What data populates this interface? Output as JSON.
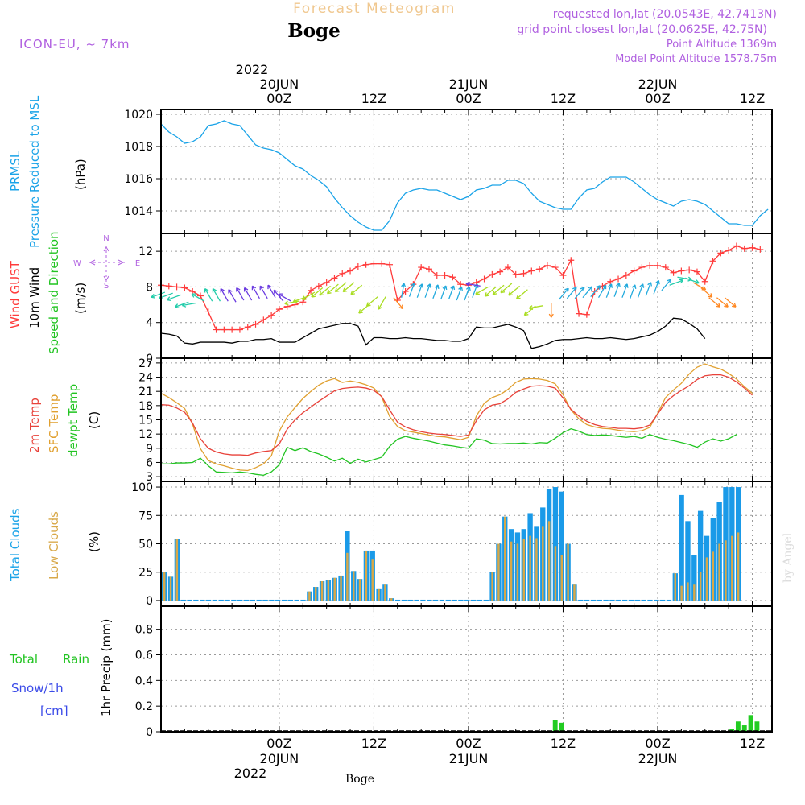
{
  "header": {
    "title": "Forecast Meteogram",
    "location": "Boge",
    "model": "ICON-EU, ~ 7km",
    "requested": "requested lon,lat (20.0543E, 42.7413N)",
    "gridpoint": "grid point closest lon,lat (20.0625E, 42.75N)",
    "altitude": "Point Altitude 1369m",
    "model_altitude": "Model Point Altitude 1578.75m",
    "footer_location": "Boge",
    "watermark": "by Angel"
  },
  "time_axis": {
    "top_year": "2022",
    "bottom_year": "2022",
    "major_labels": [
      "00Z",
      "12Z",
      "00Z",
      "12Z",
      "00Z",
      "12Z"
    ],
    "date_labels": [
      "20JUN",
      "21JUN",
      "22JUN"
    ]
  },
  "colors": {
    "pressure": "#1aa3e8",
    "gust": "#ff3b3b",
    "wind": "#000000",
    "temp": "#e8423a",
    "sfc_temp": "#e0a030",
    "dewpt": "#22c422",
    "total_clouds": "#1a9ae8",
    "low_clouds": "#d8a848",
    "rain": "#22cc22",
    "snow": "#3a4ae8",
    "purple": "#b060e0",
    "title_faint": "#f0c890"
  },
  "panels": {
    "pressure": {
      "label1": "PRMSL",
      "label2": "Pressure Reduced to MSL",
      "unit": "(hPa)",
      "ticks": [
        "1014",
        "1016",
        "1018",
        "1020"
      ]
    },
    "wind": {
      "label_gust": "Wind GUST",
      "label_wind": "10m Wind",
      "label_dir": "Speed and Direction",
      "unit": "(m/s)",
      "ticks": [
        "0",
        "4",
        "8",
        "12"
      ],
      "compass": {
        "n": "N",
        "s": "S",
        "w": "W",
        "e": "E"
      }
    },
    "temp": {
      "label1": "2m Temp",
      "label2": "SFC Temp",
      "label3": "dewpt Temp",
      "unit": "(C)",
      "ticks": [
        "3",
        "6",
        "9",
        "12",
        "15",
        "18",
        "21",
        "24",
        "27"
      ]
    },
    "clouds": {
      "label1": "Total Clouds",
      "label2": "Low Clouds",
      "unit": "(%)",
      "ticks": [
        "0",
        "25",
        "50",
        "75",
        "100"
      ]
    },
    "precip": {
      "label1": "Total",
      "label2": "Rain",
      "label3": "Snow/1h",
      "label4": "[cm]",
      "axis_label": "1hr Precip (mm)",
      "ticks": [
        "0",
        "0.2",
        "0.4",
        "0.6",
        "0.8"
      ]
    }
  },
  "chart_data": {
    "type": "line",
    "time_start_utc": "2022-06-19T09:00Z",
    "time_step_hours": 1,
    "time_index_dates": {
      "0": "2022-06-19 09Z",
      "15": "2022-06-20 00Z",
      "39": "2022-06-21 00Z",
      "63": "2022-06-22 00Z"
    },
    "series": [
      {
        "name": "PRMSL",
        "unit": "hPa",
        "values": [
          1019.4,
          1018.9,
          1018.6,
          1018.2,
          1018.3,
          1018.6,
          1019.3,
          1019.4,
          1019.6,
          1019.4,
          1019.3,
          1018.7,
          1018.1,
          1017.9,
          1017.8,
          1017.6,
          1017.2,
          1016.8,
          1016.6,
          1016.2,
          1015.9,
          1015.5,
          1014.8,
          1014.2,
          1013.7,
          1013.3,
          1013.0,
          1012.8,
          1012.8,
          1013.4,
          1014.5,
          1015.1,
          1015.3,
          1015.4,
          1015.3,
          1015.3,
          1015.1,
          1014.9,
          1014.7,
          1014.9,
          1015.3,
          1015.4,
          1015.6,
          1015.6,
          1015.9,
          1015.9,
          1015.7,
          1015.1,
          1014.6,
          1014.4,
          1014.2,
          1014.1,
          1014.1,
          1014.8,
          1015.3,
          1015.4,
          1015.8,
          1016.1,
          1016.1,
          1016.1,
          1015.8,
          1015.4,
          1015.0,
          1014.7,
          1014.5,
          1014.3,
          1014.6,
          1014.7,
          1014.6,
          1014.4,
          1014.0,
          1013.6,
          1013.2,
          1013.2,
          1013.1,
          1013.1,
          1013.7,
          1014.1
        ]
      },
      {
        "name": "Wind GUST",
        "unit": "m/s",
        "values": [
          8.2,
          8.1,
          8.0,
          7.9,
          7.5,
          7.0,
          5.2,
          3.2,
          3.2,
          3.2,
          3.2,
          3.5,
          3.8,
          4.3,
          4.8,
          5.5,
          5.8,
          6.0,
          6.3,
          7.6,
          8.1,
          8.5,
          9.0,
          9.5,
          9.8,
          10.3,
          10.5,
          10.6,
          10.6,
          10.5,
          6.5,
          7.5,
          8.3,
          10.2,
          10.0,
          9.3,
          9.3,
          9.1,
          8.3,
          8.2,
          8.5,
          8.9,
          9.4,
          9.7,
          10.2,
          9.4,
          9.5,
          9.8,
          10.0,
          10.4,
          10.2,
          9.3,
          11.0,
          5.0,
          4.9,
          7.5,
          8.1,
          8.6,
          8.9,
          9.3,
          9.8,
          10.2,
          10.4,
          10.4,
          10.2,
          9.6,
          9.8,
          9.9,
          9.7,
          8.6,
          10.9,
          11.8,
          12.1,
          12.6,
          12.3,
          12.4,
          12.2
        ]
      },
      {
        "name": "10m Wind",
        "unit": "m/s",
        "values": [
          2.8,
          2.7,
          2.5,
          1.7,
          1.6,
          1.8,
          1.8,
          1.8,
          1.8,
          1.7,
          1.9,
          1.9,
          2.1,
          2.1,
          2.2,
          1.8,
          1.8,
          1.8,
          2.3,
          2.8,
          3.3,
          3.5,
          3.7,
          3.9,
          3.9,
          3.6,
          1.5,
          2.3,
          2.3,
          2.2,
          2.2,
          2.3,
          2.2,
          2.2,
          2.1,
          2.0,
          2.0,
          1.9,
          1.9,
          2.2,
          3.5,
          3.4,
          3.4,
          3.6,
          3.8,
          3.5,
          3.1,
          1.1,
          1.3,
          1.6,
          2.0,
          2.1,
          2.1,
          2.2,
          2.3,
          2.2,
          2.2,
          2.3,
          2.2,
          2.1,
          2.2,
          2.4,
          2.6,
          3.0,
          3.6,
          4.5,
          4.4,
          3.9,
          3.3,
          2.2
        ]
      },
      {
        "name": "2m Temp",
        "unit": "C",
        "values": [
          18.2,
          18.1,
          17.5,
          16.6,
          14.3,
          11.0,
          9.0,
          8.2,
          7.8,
          7.6,
          7.6,
          7.5,
          8.0,
          8.3,
          8.5,
          9.9,
          13.0,
          15.0,
          16.5,
          17.7,
          18.9,
          20.0,
          21.1,
          21.6,
          21.8,
          21.9,
          21.7,
          21.2,
          19.9,
          17.1,
          14.5,
          13.5,
          12.9,
          12.5,
          12.2,
          12.0,
          11.9,
          11.7,
          11.5,
          11.8,
          14.8,
          17.1,
          18.1,
          18.4,
          19.4,
          20.8,
          21.5,
          22.1,
          22.2,
          22.1,
          21.7,
          19.6,
          17.2,
          15.8,
          14.7,
          14.0,
          13.6,
          13.4,
          13.2,
          13.2,
          13.1,
          13.3,
          13.9,
          16.2,
          18.7,
          20.1,
          21.2,
          22.2,
          23.5,
          24.3,
          24.5,
          24.5,
          24.0,
          23.0,
          21.7,
          20.2
        ]
      },
      {
        "name": "SFC Temp",
        "unit": "C",
        "values": [
          20.6,
          19.7,
          18.6,
          17.4,
          14.1,
          8.9,
          6.4,
          5.7,
          5.3,
          4.8,
          4.4,
          4.3,
          4.9,
          5.7,
          7.4,
          12.6,
          15.6,
          17.6,
          19.5,
          21.0,
          22.3,
          23.2,
          23.7,
          22.9,
          23.2,
          22.9,
          22.4,
          21.7,
          19.8,
          15.7,
          13.6,
          12.7,
          12.4,
          12.1,
          11.8,
          11.5,
          11.4,
          11.1,
          10.8,
          11.3,
          15.8,
          18.5,
          19.7,
          20.3,
          21.4,
          22.9,
          23.6,
          23.7,
          23.6,
          23.3,
          22.6,
          20.3,
          17.1,
          15.2,
          14.0,
          13.5,
          13.2,
          13.1,
          12.8,
          12.6,
          12.5,
          12.7,
          13.4,
          16.4,
          19.7,
          21.3,
          22.7,
          24.7,
          26.1,
          26.8,
          26.2,
          25.7,
          24.8,
          23.6,
          22.0,
          20.6
        ]
      },
      {
        "name": "dewpt Temp",
        "unit": "C",
        "values": [
          5.7,
          5.7,
          5.9,
          5.9,
          6.0,
          6.9,
          5.3,
          4.0,
          3.9,
          3.8,
          4.0,
          3.8,
          3.5,
          3.3,
          4.0,
          5.5,
          9.2,
          8.5,
          9.1,
          8.3,
          7.8,
          7.1,
          6.3,
          6.9,
          5.8,
          6.7,
          6.1,
          6.6,
          7.1,
          9.4,
          10.9,
          11.5,
          11.1,
          10.8,
          10.5,
          10.1,
          9.7,
          9.5,
          9.2,
          9.0,
          11.0,
          10.7,
          10.0,
          9.9,
          10.0,
          10.0,
          10.1,
          9.9,
          10.2,
          10.1,
          11.1,
          12.3,
          13.1,
          12.6,
          11.9,
          11.7,
          11.8,
          11.7,
          11.5,
          11.3,
          11.5,
          11.1,
          11.9,
          11.3,
          10.9,
          10.6,
          10.2,
          9.8,
          9.2,
          10.3,
          11.0,
          10.5,
          11.0,
          11.9
        ]
      },
      {
        "name": "Total Clouds",
        "unit": "%",
        "values": [
          25,
          21,
          54,
          0,
          0,
          0,
          0,
          0,
          0,
          0,
          0,
          0,
          0,
          0,
          0,
          0,
          0,
          0,
          0,
          0,
          0,
          0,
          0,
          8,
          12,
          17,
          18,
          20,
          22,
          61,
          26,
          19,
          44,
          44,
          10,
          14,
          2,
          0,
          0,
          0,
          0,
          0,
          0,
          0,
          0,
          0,
          0,
          0,
          0,
          0,
          0,
          0,
          25,
          50,
          74,
          63,
          60,
          63,
          77,
          65,
          82,
          98,
          100,
          96,
          50,
          14,
          0,
          0,
          0,
          0,
          0,
          0,
          0,
          0,
          0,
          0,
          0,
          0,
          0,
          0,
          0,
          24,
          93,
          70,
          40,
          79,
          57,
          73,
          87,
          100,
          100,
          100
        ]
      },
      {
        "name": "Low Clouds",
        "unit": "%",
        "values": [
          25,
          21,
          54,
          0,
          0,
          0,
          0,
          0,
          0,
          0,
          0,
          0,
          0,
          0,
          0,
          0,
          0,
          0,
          0,
          0,
          0,
          0,
          0,
          8,
          12,
          17,
          18,
          20,
          22,
          42,
          26,
          19,
          44,
          36,
          10,
          14,
          2,
          0,
          0,
          0,
          0,
          0,
          0,
          0,
          0,
          0,
          0,
          0,
          0,
          0,
          0,
          0,
          25,
          50,
          74,
          52,
          50,
          54,
          57,
          55,
          65,
          70,
          48,
          40,
          50,
          14,
          0,
          0,
          0,
          0,
          0,
          0,
          0,
          0,
          0,
          0,
          0,
          0,
          0,
          0,
          0,
          24,
          13,
          16,
          14,
          25,
          38,
          43,
          50,
          53,
          57,
          60,
          55
        ]
      },
      {
        "name": "1hr Precip",
        "unit": "mm",
        "values": [
          0,
          0,
          0,
          0,
          0,
          0,
          0,
          0,
          0,
          0,
          0,
          0,
          0,
          0,
          0,
          0,
          0,
          0,
          0,
          0,
          0,
          0,
          0,
          0,
          0,
          0,
          0,
          0,
          0,
          0,
          0,
          0,
          0,
          0,
          0,
          0,
          0,
          0,
          0,
          0,
          0,
          0,
          0,
          0,
          0,
          0,
          0,
          0,
          0,
          0,
          0,
          0,
          0,
          0,
          0,
          0,
          0,
          0,
          0,
          0,
          0,
          0,
          0.09,
          0.07,
          0,
          0,
          0,
          0,
          0,
          0,
          0,
          0,
          0,
          0,
          0,
          0,
          0,
          0,
          0,
          0,
          0,
          0,
          0,
          0,
          0,
          0,
          0,
          0,
          0,
          0,
          0.02,
          0.08,
          0.05,
          0.13,
          0.08
        ]
      }
    ],
    "pressure_ylim": [
      1012.6,
      1020.3
    ],
    "wind_ylim": [
      0,
      14
    ],
    "temp_ylim": [
      2,
      28
    ],
    "clouds_ylim": [
      -5,
      105
    ],
    "precip_ylim": [
      0,
      0.98
    ],
    "wind_arrow_dirs_deg": [
      250,
      250,
      250,
      250,
      260,
      300,
      330,
      330,
      330,
      330,
      330,
      330,
      330,
      330,
      330,
      320,
      300,
      260,
      250,
      240,
      230,
      230,
      230,
      230,
      230,
      230,
      230,
      230,
      210,
      140,
      10,
      20,
      20,
      20,
      20,
      20,
      20,
      20,
      20,
      20,
      280,
      240,
      230,
      230,
      230,
      230,
      230,
      230,
      260,
      180,
      40,
      40,
      40,
      40,
      40,
      30,
      20,
      20,
      20,
      20,
      20,
      20,
      20,
      40,
      70,
      100,
      110,
      120,
      130,
      130,
      130,
      130
    ],
    "grid": true
  }
}
